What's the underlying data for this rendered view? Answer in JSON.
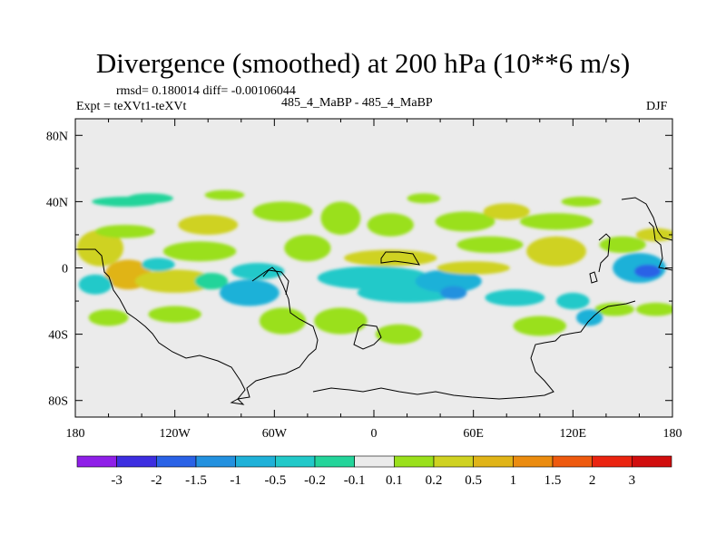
{
  "chart_data": {
    "type": "heatmap",
    "title": "Divergence (smoothed) at 200 hPa (10**6 m/s)",
    "stats_text": "rmsd= 0.180014 diff= -0.00106044",
    "left_label": "Expt = teXVt1-teXVt",
    "center_label": "485_4_MaBP - 485_4_MaBP",
    "right_label": "DJF",
    "x_ticks": [
      "180",
      "120W",
      "60W",
      "0",
      "60E",
      "120E",
      "180"
    ],
    "x_range": [
      -180,
      180
    ],
    "y_ticks": [
      "80N",
      "40N",
      "0",
      "40S",
      "80S"
    ],
    "y_range": [
      -90,
      90
    ],
    "colorbar": {
      "labels": [
        "-3",
        "-2",
        "-1.5",
        "-1",
        "-0.5",
        "-0.2",
        "-0.1",
        "0.1",
        "0.2",
        "0.5",
        "1",
        "1.5",
        "2",
        "3"
      ],
      "colors": [
        "#8f1fe8",
        "#3d2ee0",
        "#2a62e6",
        "#2391df",
        "#1fb1d8",
        "#22c9c9",
        "#24d49a",
        "#ebebeb",
        "#9ae01c",
        "#cfd222",
        "#e0b418",
        "#eb8c10",
        "#ee5a0f",
        "#ea2410",
        "#d10e0e"
      ]
    },
    "blobs": [
      {
        "lon": -165,
        "lat": 12,
        "rx": 14,
        "ry": 11,
        "color": "#cfd222"
      },
      {
        "lon": -148,
        "lat": -4,
        "rx": 14,
        "ry": 9,
        "color": "#e0b418"
      },
      {
        "lon": -168,
        "lat": -10,
        "rx": 10,
        "ry": 6,
        "color": "#22c9c9"
      },
      {
        "lon": -150,
        "lat": 22,
        "rx": 18,
        "ry": 4,
        "color": "#9ae01c"
      },
      {
        "lon": -100,
        "lat": 26,
        "rx": 18,
        "ry": 6,
        "color": "#cfd222"
      },
      {
        "lon": -105,
        "lat": 10,
        "rx": 22,
        "ry": 6,
        "color": "#9ae01c"
      },
      {
        "lon": -120,
        "lat": -8,
        "rx": 24,
        "ry": 7,
        "color": "#cfd222"
      },
      {
        "lon": -120,
        "lat": -28,
        "rx": 16,
        "ry": 5,
        "color": "#9ae01c"
      },
      {
        "lon": -135,
        "lat": 42,
        "rx": 14,
        "ry": 3,
        "color": "#24d49a"
      },
      {
        "lon": -98,
        "lat": -8,
        "rx": 10,
        "ry": 5,
        "color": "#24d49a"
      },
      {
        "lon": -130,
        "lat": 2,
        "rx": 10,
        "ry": 4,
        "color": "#22c9c9"
      },
      {
        "lon": -75,
        "lat": -15,
        "rx": 18,
        "ry": 8,
        "color": "#1fb1d8"
      },
      {
        "lon": -70,
        "lat": -2,
        "rx": 16,
        "ry": 5,
        "color": "#22c9c9"
      },
      {
        "lon": -55,
        "lat": -32,
        "rx": 14,
        "ry": 8,
        "color": "#9ae01c"
      },
      {
        "lon": -40,
        "lat": 12,
        "rx": 14,
        "ry": 8,
        "color": "#9ae01c"
      },
      {
        "lon": -55,
        "lat": 34,
        "rx": 18,
        "ry": 6,
        "color": "#9ae01c"
      },
      {
        "lon": -20,
        "lat": 30,
        "rx": 12,
        "ry": 10,
        "color": "#9ae01c"
      },
      {
        "lon": 10,
        "lat": 26,
        "rx": 14,
        "ry": 7,
        "color": "#9ae01c"
      },
      {
        "lon": 10,
        "lat": 6,
        "rx": 28,
        "ry": 5,
        "color": "#cfd222"
      },
      {
        "lon": 0,
        "lat": -6,
        "rx": 34,
        "ry": 7,
        "color": "#22c9c9"
      },
      {
        "lon": 20,
        "lat": -15,
        "rx": 30,
        "ry": 6,
        "color": "#22c9c9"
      },
      {
        "lon": -20,
        "lat": -32,
        "rx": 16,
        "ry": 8,
        "color": "#9ae01c"
      },
      {
        "lon": 15,
        "lat": -40,
        "rx": 14,
        "ry": 6,
        "color": "#9ae01c"
      },
      {
        "lon": 45,
        "lat": -8,
        "rx": 20,
        "ry": 7,
        "color": "#1fb1d8"
      },
      {
        "lon": 48,
        "lat": -15,
        "rx": 8,
        "ry": 4,
        "color": "#2391df"
      },
      {
        "lon": 60,
        "lat": 0,
        "rx": 22,
        "ry": 4,
        "color": "#cfd222"
      },
      {
        "lon": 70,
        "lat": 14,
        "rx": 20,
        "ry": 5,
        "color": "#9ae01c"
      },
      {
        "lon": 55,
        "lat": 28,
        "rx": 18,
        "ry": 6,
        "color": "#9ae01c"
      },
      {
        "lon": 80,
        "lat": 34,
        "rx": 14,
        "ry": 5,
        "color": "#cfd222"
      },
      {
        "lon": 110,
        "lat": 10,
        "rx": 18,
        "ry": 9,
        "color": "#cfd222"
      },
      {
        "lon": 110,
        "lat": 28,
        "rx": 22,
        "ry": 5,
        "color": "#9ae01c"
      },
      {
        "lon": 85,
        "lat": -18,
        "rx": 18,
        "ry": 5,
        "color": "#22c9c9"
      },
      {
        "lon": 120,
        "lat": -20,
        "rx": 10,
        "ry": 5,
        "color": "#22c9c9"
      },
      {
        "lon": 100,
        "lat": -35,
        "rx": 16,
        "ry": 6,
        "color": "#9ae01c"
      },
      {
        "lon": 160,
        "lat": 0,
        "rx": 16,
        "ry": 9,
        "color": "#1fb1d8"
      },
      {
        "lon": 165,
        "lat": -2,
        "rx": 8,
        "ry": 4,
        "color": "#2a62e6"
      },
      {
        "lon": 150,
        "lat": 14,
        "rx": 14,
        "ry": 5,
        "color": "#9ae01c"
      },
      {
        "lon": 170,
        "lat": 20,
        "rx": 12,
        "ry": 4,
        "color": "#cfd222"
      },
      {
        "lon": 145,
        "lat": -25,
        "rx": 12,
        "ry": 4,
        "color": "#9ae01c"
      },
      {
        "lon": 130,
        "lat": -30,
        "rx": 8,
        "ry": 5,
        "color": "#1fb1d8"
      },
      {
        "lon": -150,
        "lat": 40,
        "rx": 20,
        "ry": 3,
        "color": "#24d49a"
      },
      {
        "lon": -90,
        "lat": 44,
        "rx": 12,
        "ry": 3,
        "color": "#9ae01c"
      },
      {
        "lon": 30,
        "lat": 42,
        "rx": 10,
        "ry": 3,
        "color": "#9ae01c"
      },
      {
        "lon": 125,
        "lat": 40,
        "rx": 12,
        "ry": 3,
        "color": "#9ae01c"
      },
      {
        "lon": -160,
        "lat": -30,
        "rx": 12,
        "ry": 5,
        "color": "#9ae01c"
      },
      {
        "lon": 170,
        "lat": -25,
        "rx": 12,
        "ry": 4,
        "color": "#9ae01c"
      }
    ]
  }
}
